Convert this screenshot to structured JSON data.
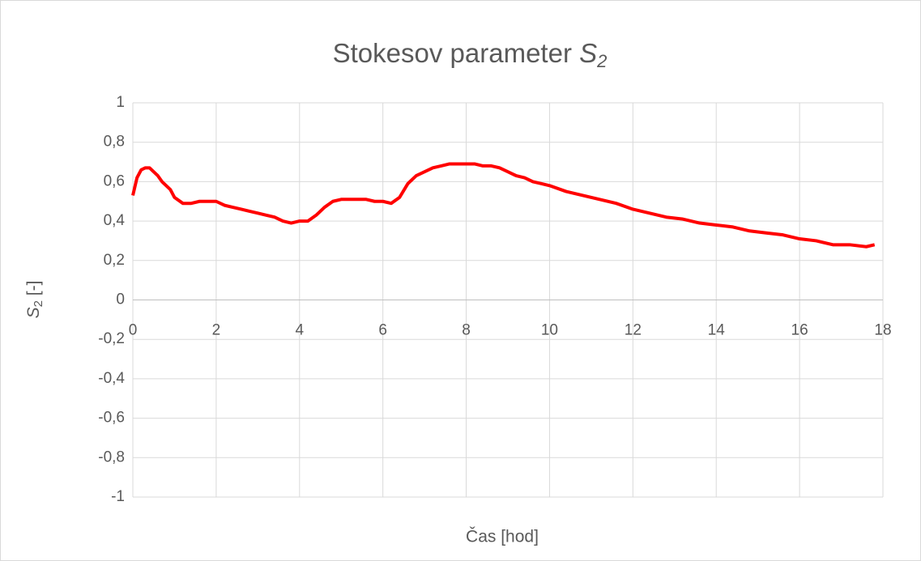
{
  "chart_data": {
    "type": "line",
    "title": {
      "text": "Stokesov parameter ",
      "symbol": "S",
      "subscript": "2"
    },
    "xlabel": "Čas [hod]",
    "ylabel": {
      "symbol": "S",
      "subscript": "2",
      "text": " [-]"
    },
    "color": "#ff0000",
    "grid": true,
    "xlim": [
      0,
      18
    ],
    "ylim": [
      -1,
      1
    ],
    "xticks": [
      0,
      2,
      4,
      6,
      8,
      10,
      12,
      14,
      16,
      18
    ],
    "yticks": [
      -1,
      {
        "value": -0.8,
        "label": "-0,8"
      },
      {
        "value": -0.6,
        "label": "-0,6"
      },
      {
        "value": -0.4,
        "label": "-0,4"
      },
      {
        "value": -0.2,
        "label": "-0,2"
      },
      0,
      {
        "value": 0.2,
        "label": "0,2"
      },
      {
        "value": 0.4,
        "label": "0,4"
      },
      {
        "value": 0.6,
        "label": "0,6"
      },
      {
        "value": 0.8,
        "label": "0,8"
      },
      1
    ],
    "x": [
      0,
      0.1,
      0.2,
      0.3,
      0.4,
      0.5,
      0.6,
      0.7,
      0.8,
      0.9,
      1.0,
      1.2,
      1.4,
      1.6,
      1.8,
      2.0,
      2.2,
      2.4,
      2.6,
      2.8,
      3.0,
      3.2,
      3.4,
      3.6,
      3.8,
      4.0,
      4.2,
      4.4,
      4.6,
      4.8,
      5.0,
      5.2,
      5.4,
      5.6,
      5.8,
      6.0,
      6.2,
      6.4,
      6.6,
      6.8,
      7.0,
      7.2,
      7.4,
      7.6,
      7.8,
      8.0,
      8.2,
      8.4,
      8.6,
      8.8,
      9.0,
      9.2,
      9.4,
      9.6,
      9.8,
      10.0,
      10.4,
      10.8,
      11.2,
      11.6,
      12.0,
      12.4,
      12.8,
      13.2,
      13.6,
      14.0,
      14.4,
      14.8,
      15.2,
      15.6,
      16.0,
      16.4,
      16.8,
      17.2,
      17.6,
      17.8
    ],
    "values": [
      0.53,
      0.62,
      0.66,
      0.67,
      0.67,
      0.65,
      0.63,
      0.6,
      0.58,
      0.56,
      0.52,
      0.49,
      0.49,
      0.5,
      0.5,
      0.5,
      0.48,
      0.47,
      0.46,
      0.45,
      0.44,
      0.43,
      0.42,
      0.4,
      0.39,
      0.4,
      0.4,
      0.43,
      0.47,
      0.5,
      0.51,
      0.51,
      0.51,
      0.51,
      0.5,
      0.5,
      0.49,
      0.52,
      0.59,
      0.63,
      0.65,
      0.67,
      0.68,
      0.69,
      0.69,
      0.69,
      0.69,
      0.68,
      0.68,
      0.67,
      0.65,
      0.63,
      0.62,
      0.6,
      0.59,
      0.58,
      0.55,
      0.53,
      0.51,
      0.49,
      0.46,
      0.44,
      0.42,
      0.41,
      0.39,
      0.38,
      0.37,
      0.35,
      0.34,
      0.33,
      0.31,
      0.3,
      0.28,
      0.28,
      0.27,
      0.28
    ]
  }
}
